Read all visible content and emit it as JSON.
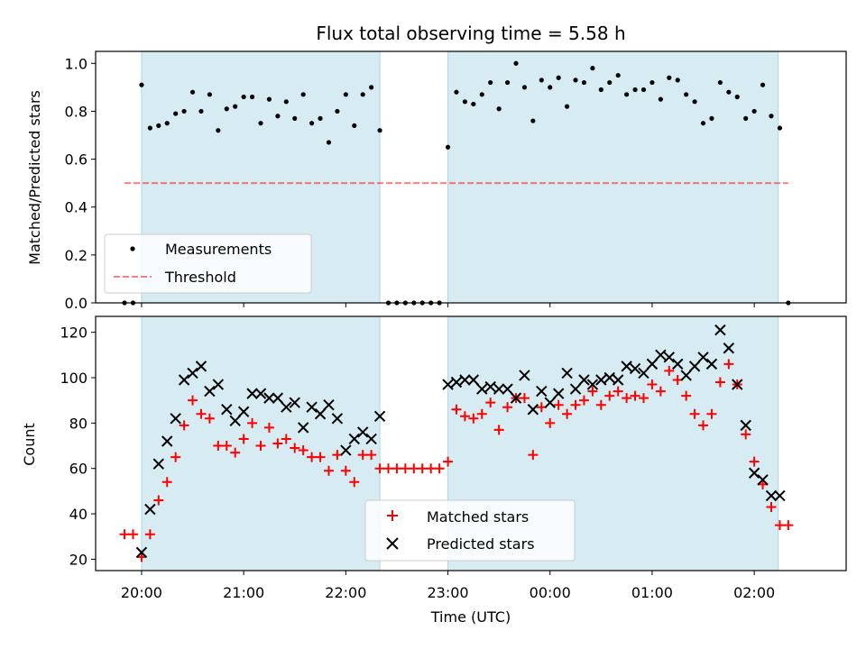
{
  "title": "Flux total observing time = 5.58 h",
  "colors": {
    "band": "#add8e6",
    "measurement": "#000000",
    "threshold": "#ff0000",
    "matched": "#ff0000",
    "predicted": "#000000"
  },
  "chart_data": [
    {
      "type": "scatter",
      "ylabel": "Matched/Predicted stars",
      "xlabel": "",
      "xlim": [
        "19:33",
        "02:54"
      ],
      "ylim": [
        0,
        1.05
      ],
      "ytick_labels": [
        "0.0",
        "0.2",
        "0.4",
        "0.6",
        "0.8",
        "1.0"
      ],
      "grid": false,
      "legend": {
        "placement": "lower-left",
        "entries": [
          "Measurements",
          "Threshold"
        ]
      },
      "shaded_intervals": [
        [
          "20:00",
          "22:20"
        ],
        [
          "23:00",
          "02:14"
        ]
      ],
      "threshold": {
        "name": "Threshold",
        "value": 0.5,
        "x_range": [
          "19:50",
          "02:20"
        ]
      },
      "series": [
        {
          "name": "Measurements",
          "x": [
            "19:50",
            "19:55",
            "20:00",
            "20:05",
            "20:10",
            "20:15",
            "20:20",
            "20:25",
            "20:30",
            "20:35",
            "20:40",
            "20:45",
            "20:50",
            "20:55",
            "21:00",
            "21:05",
            "21:10",
            "21:15",
            "21:20",
            "21:25",
            "21:30",
            "21:35",
            "21:40",
            "21:45",
            "21:50",
            "21:55",
            "22:00",
            "22:05",
            "22:10",
            "22:15",
            "22:20",
            "22:25",
            "22:30",
            "22:35",
            "22:40",
            "22:45",
            "22:50",
            "22:55",
            "23:00",
            "23:05",
            "23:10",
            "23:15",
            "23:20",
            "23:25",
            "23:30",
            "23:35",
            "23:40",
            "23:45",
            "23:50",
            "23:55",
            "00:00",
            "00:05",
            "00:10",
            "00:15",
            "00:20",
            "00:25",
            "00:30",
            "00:35",
            "00:40",
            "00:45",
            "00:50",
            "00:55",
            "01:00",
            "01:05",
            "01:10",
            "01:15",
            "01:20",
            "01:25",
            "01:30",
            "01:35",
            "01:40",
            "01:45",
            "01:50",
            "01:55",
            "02:00",
            "02:05",
            "02:10",
            "02:15",
            "02:20"
          ],
          "y": [
            0,
            0,
            0.91,
            0.73,
            0.74,
            0.75,
            0.79,
            0.8,
            0.88,
            0.8,
            0.87,
            0.72,
            0.81,
            0.82,
            0.86,
            0.86,
            0.75,
            0.85,
            0.78,
            0.84,
            0.77,
            0.87,
            0.75,
            0.77,
            0.67,
            0.8,
            0.87,
            0.74,
            0.87,
            0.9,
            0.72,
            0,
            0,
            0,
            0,
            0,
            0,
            0,
            0.65,
            0.88,
            0.84,
            0.83,
            0.87,
            0.92,
            0.81,
            0.92,
            1.0,
            0.9,
            0.76,
            0.93,
            0.9,
            0.94,
            0.82,
            0.93,
            0.92,
            0.98,
            0.89,
            0.92,
            0.95,
            0.87,
            0.89,
            0.89,
            0.92,
            0.85,
            0.94,
            0.93,
            0.87,
            0.84,
            0.75,
            0.77,
            0.92,
            0.88,
            0.86,
            0.77,
            0.8,
            0.91,
            0.78,
            0.73,
            0
          ]
        }
      ]
    },
    {
      "type": "scatter",
      "ylabel": "Count",
      "xlabel": "Time (UTC)",
      "xlim": [
        "19:33",
        "02:54"
      ],
      "ylim": [
        15,
        127
      ],
      "ytick_labels": [
        "20",
        "40",
        "60",
        "80",
        "100",
        "120"
      ],
      "xtick_labels": [
        "20:00",
        "21:00",
        "22:00",
        "23:00",
        "00:00",
        "01:00",
        "02:00"
      ],
      "grid": false,
      "legend": {
        "placement": "lower-center",
        "entries": [
          "Matched stars",
          "Predicted stars"
        ]
      },
      "shaded_intervals": [
        [
          "20:00",
          "22:20"
        ],
        [
          "23:00",
          "02:14"
        ]
      ],
      "series": [
        {
          "name": "Matched stars",
          "x": [
            "19:50",
            "19:55",
            "20:00",
            "20:05",
            "20:10",
            "20:15",
            "20:20",
            "20:25",
            "20:30",
            "20:35",
            "20:40",
            "20:45",
            "20:50",
            "20:55",
            "21:00",
            "21:05",
            "21:10",
            "21:15",
            "21:20",
            "21:25",
            "21:30",
            "21:35",
            "21:40",
            "21:45",
            "21:50",
            "21:55",
            "22:00",
            "22:05",
            "22:10",
            "22:15",
            "22:20",
            "22:25",
            "22:30",
            "22:35",
            "22:40",
            "22:45",
            "22:50",
            "22:55",
            "23:00",
            "23:05",
            "23:10",
            "23:15",
            "23:20",
            "23:25",
            "23:30",
            "23:35",
            "23:40",
            "23:45",
            "23:50",
            "23:55",
            "00:00",
            "00:05",
            "00:10",
            "00:15",
            "00:20",
            "00:25",
            "00:30",
            "00:35",
            "00:40",
            "00:45",
            "00:50",
            "00:55",
            "01:00",
            "01:05",
            "01:10",
            "01:15",
            "01:20",
            "01:25",
            "01:30",
            "01:35",
            "01:40",
            "01:45",
            "01:50",
            "01:55",
            "02:00",
            "02:05",
            "02:10",
            "02:15",
            "02:20"
          ],
          "y": [
            31,
            31,
            21,
            31,
            46,
            54,
            65,
            79,
            90,
            84,
            82,
            70,
            70,
            67,
            73,
            80,
            70,
            78,
            71,
            73,
            69,
            68,
            65,
            65,
            59,
            66,
            59,
            54,
            66,
            66,
            60,
            60,
            60,
            60,
            60,
            60,
            60,
            60,
            63,
            86,
            83,
            82,
            84,
            89,
            77,
            87,
            91,
            91,
            66,
            87,
            80,
            88,
            84,
            88,
            90,
            94,
            88,
            92,
            94,
            91,
            92,
            91,
            97,
            94,
            103,
            99,
            92,
            84,
            79,
            84,
            98,
            106,
            97,
            75,
            63,
            53,
            43,
            35,
            35
          ]
        },
        {
          "name": "Predicted stars",
          "x": [
            "20:00",
            "20:05",
            "20:10",
            "20:15",
            "20:20",
            "20:25",
            "20:30",
            "20:35",
            "20:40",
            "20:45",
            "20:50",
            "20:55",
            "21:00",
            "21:05",
            "21:10",
            "21:15",
            "21:20",
            "21:25",
            "21:30",
            "21:35",
            "21:40",
            "21:45",
            "21:50",
            "21:55",
            "22:00",
            "22:05",
            "22:10",
            "22:15",
            "22:20",
            "23:00",
            "23:05",
            "23:10",
            "23:15",
            "23:20",
            "23:25",
            "23:30",
            "23:35",
            "23:40",
            "23:45",
            "23:50",
            "23:55",
            "00:00",
            "00:05",
            "00:10",
            "00:15",
            "00:20",
            "00:25",
            "00:30",
            "00:35",
            "00:40",
            "00:45",
            "00:50",
            "00:55",
            "01:00",
            "01:05",
            "01:10",
            "01:15",
            "01:20",
            "01:25",
            "01:30",
            "01:35",
            "01:40",
            "01:45",
            "01:50",
            "01:55",
            "02:00",
            "02:05",
            "02:10",
            "02:15"
          ],
          "y": [
            23,
            42,
            62,
            72,
            82,
            99,
            102,
            105,
            94,
            97,
            86,
            81,
            85,
            93,
            93,
            91,
            91,
            87,
            89,
            78,
            87,
            84,
            88,
            82,
            68,
            73,
            76,
            73,
            83,
            97,
            98,
            99,
            99,
            95,
            96,
            95,
            95,
            91,
            101,
            86,
            94,
            89,
            93,
            102,
            95,
            99,
            97,
            99,
            100,
            99,
            105,
            104,
            102,
            106,
            110,
            109,
            106,
            101,
            105,
            109,
            106,
            121,
            113,
            97,
            79,
            58,
            55,
            48,
            48
          ]
        }
      ]
    }
  ]
}
